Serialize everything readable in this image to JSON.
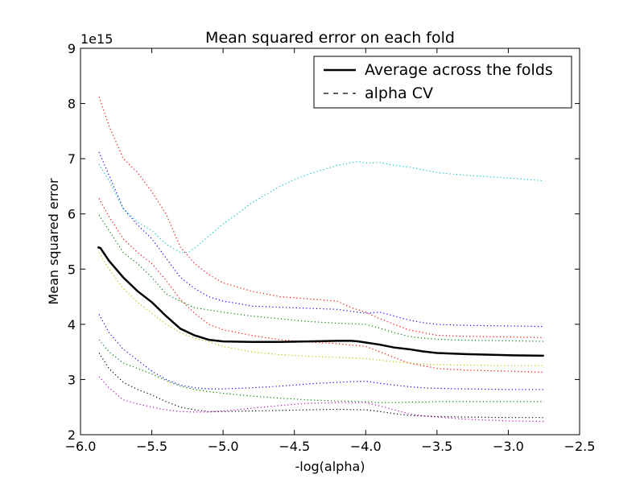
{
  "chart_data": {
    "type": "line",
    "title": "Mean squared error on each fold",
    "xlabel": "-log(alpha)",
    "ylabel": "Mean squared error",
    "y_multiplier_label": "1e15",
    "xlim": [
      -6.0,
      -2.5
    ],
    "ylim": [
      2,
      9
    ],
    "x_ticks": [
      "−6.0",
      "−5.5",
      "−5.0",
      "−4.5",
      "−4.0",
      "−3.5",
      "−3.0",
      "−2.5"
    ],
    "x_tick_values": [
      -6.0,
      -5.5,
      -5.0,
      -4.5,
      -4.0,
      -3.5,
      -3.0,
      -2.5
    ],
    "y_ticks": [
      "2",
      "3",
      "4",
      "5",
      "6",
      "7",
      "8",
      "9"
    ],
    "y_tick_values": [
      2,
      3,
      4,
      5,
      6,
      7,
      8,
      9
    ],
    "grid": false,
    "legend_position": "top-right",
    "legend": [
      {
        "label": "Average across the folds",
        "style": "solid-thick",
        "color": "#000000"
      },
      {
        "label": "alpha CV",
        "style": "dashed",
        "color": "#000000"
      }
    ],
    "series": [
      {
        "style": "dotted",
        "color": "#ff0000",
        "x": [
          -5.87,
          -5.8,
          -5.7,
          -5.6,
          -5.5,
          -5.4,
          -5.3,
          -5.2,
          -5.1,
          -5.0,
          -4.8,
          -4.6,
          -4.4,
          -4.2,
          -4.1,
          -4.0,
          -3.9,
          -3.8,
          -3.7,
          -3.6,
          -3.5,
          -3.3,
          -3.0,
          -2.75
        ],
        "y": [
          8.12,
          7.6,
          7.0,
          6.75,
          6.4,
          6.0,
          5.4,
          5.1,
          4.9,
          4.75,
          4.6,
          4.5,
          4.46,
          4.42,
          4.3,
          4.22,
          4.1,
          4.0,
          3.9,
          3.85,
          3.8,
          3.78,
          3.77,
          3.76
        ]
      },
      {
        "style": "dotted",
        "color": "#0000ff",
        "x": [
          -5.87,
          -5.8,
          -5.7,
          -5.6,
          -5.5,
          -5.4,
          -5.3,
          -5.2,
          -5.1,
          -5.0,
          -4.9,
          -4.8,
          -4.6,
          -4.4,
          -4.2,
          -4.0,
          -3.9,
          -3.8,
          -3.7,
          -3.6,
          -3.5,
          -3.3,
          -3.0,
          -2.75
        ],
        "y": [
          7.12,
          6.7,
          6.1,
          5.8,
          5.55,
          5.2,
          4.85,
          4.65,
          4.5,
          4.42,
          4.38,
          4.33,
          4.31,
          4.29,
          4.27,
          4.2,
          4.22,
          4.15,
          4.08,
          4.03,
          4.0,
          3.98,
          3.97,
          3.96
        ]
      },
      {
        "style": "dotted",
        "color": "#00bfbf",
        "x": [
          -5.87,
          -5.8,
          -5.7,
          -5.6,
          -5.5,
          -5.4,
          -5.3,
          -5.25,
          -5.2,
          -5.1,
          -5.0,
          -4.9,
          -4.8,
          -4.7,
          -4.6,
          -4.5,
          -4.4,
          -4.3,
          -4.2,
          -4.1,
          -4.05,
          -4.0,
          -3.9,
          -3.8,
          -3.7,
          -3.6,
          -3.5,
          -3.3,
          -3.0,
          -2.75
        ],
        "y": [
          6.9,
          6.6,
          6.1,
          5.85,
          5.7,
          5.45,
          5.3,
          5.3,
          5.38,
          5.6,
          5.82,
          6.0,
          6.2,
          6.35,
          6.5,
          6.62,
          6.72,
          6.8,
          6.88,
          6.93,
          6.95,
          6.92,
          6.93,
          6.88,
          6.85,
          6.8,
          6.75,
          6.7,
          6.65,
          6.6
        ]
      },
      {
        "style": "dotted",
        "color": "#ff0000",
        "x": [
          -5.87,
          -5.8,
          -5.7,
          -5.6,
          -5.5,
          -5.4,
          -5.3,
          -5.2,
          -5.1,
          -5.0,
          -4.8,
          -4.6,
          -4.4,
          -4.2,
          -4.0,
          -3.9,
          -3.8,
          -3.7,
          -3.6,
          -3.5,
          -3.3,
          -3.0,
          -2.75
        ],
        "y": [
          6.28,
          5.95,
          5.55,
          5.3,
          5.1,
          4.8,
          4.45,
          4.2,
          4.0,
          3.9,
          3.8,
          3.72,
          3.68,
          3.65,
          3.6,
          3.5,
          3.4,
          3.3,
          3.25,
          3.2,
          3.17,
          3.15,
          3.13
        ]
      },
      {
        "style": "dotted",
        "color": "#008000",
        "x": [
          -5.87,
          -5.8,
          -5.7,
          -5.6,
          -5.5,
          -5.4,
          -5.3,
          -5.2,
          -5.0,
          -4.8,
          -4.6,
          -4.4,
          -4.2,
          -4.0,
          -3.9,
          -3.8,
          -3.7,
          -3.6,
          -3.5,
          -3.3,
          -3.0,
          -2.75
        ],
        "y": [
          5.98,
          5.7,
          5.3,
          5.1,
          4.85,
          4.55,
          4.42,
          4.3,
          4.22,
          4.15,
          4.1,
          4.05,
          4.02,
          4.0,
          3.93,
          3.85,
          3.78,
          3.75,
          3.73,
          3.71,
          3.7,
          3.69
        ]
      },
      {
        "style": "dotted",
        "color": "#bfbf00",
        "x": [
          -5.87,
          -5.8,
          -5.7,
          -5.6,
          -5.5,
          -5.4,
          -5.3,
          -5.2,
          -5.1,
          -5.0,
          -4.8,
          -4.6,
          -4.4,
          -4.2,
          -4.0,
          -3.9,
          -3.8,
          -3.7,
          -3.6,
          -3.5,
          -3.3,
          -3.0,
          -2.75
        ],
        "y": [
          5.3,
          5.0,
          4.65,
          4.4,
          4.2,
          4.0,
          3.85,
          3.75,
          3.68,
          3.6,
          3.5,
          3.45,
          3.42,
          3.4,
          3.38,
          3.35,
          3.32,
          3.3,
          3.28,
          3.27,
          3.26,
          3.25,
          3.25
        ]
      },
      {
        "style": "dotted",
        "color": "#0000ff",
        "x": [
          -5.87,
          -5.8,
          -5.7,
          -5.6,
          -5.5,
          -5.4,
          -5.3,
          -5.2,
          -5.1,
          -5.0,
          -4.8,
          -4.6,
          -4.4,
          -4.2,
          -4.0,
          -3.9,
          -3.8,
          -3.7,
          -3.6,
          -3.5,
          -3.3,
          -3.0,
          -2.75
        ],
        "y": [
          4.18,
          3.85,
          3.55,
          3.35,
          3.15,
          3.0,
          2.9,
          2.85,
          2.83,
          2.83,
          2.85,
          2.88,
          2.92,
          2.95,
          2.97,
          2.93,
          2.9,
          2.87,
          2.85,
          2.84,
          2.83,
          2.82,
          2.82
        ]
      },
      {
        "style": "dotted",
        "color": "#008000",
        "x": [
          -5.87,
          -5.8,
          -5.7,
          -5.6,
          -5.5,
          -5.4,
          -5.3,
          -5.2,
          -5.1,
          -5.0,
          -4.8,
          -4.6,
          -4.4,
          -4.2,
          -4.0,
          -3.9,
          -3.8,
          -3.7,
          -3.6,
          -3.5,
          -3.3,
          -3.0,
          -2.75
        ],
        "y": [
          3.72,
          3.5,
          3.3,
          3.2,
          3.1,
          2.98,
          2.88,
          2.82,
          2.78,
          2.75,
          2.7,
          2.66,
          2.63,
          2.61,
          2.6,
          2.58,
          2.58,
          2.59,
          2.59,
          2.6,
          2.6,
          2.6,
          2.6
        ]
      },
      {
        "style": "dotted",
        "color": "#000000",
        "x": [
          -5.87,
          -5.8,
          -5.7,
          -5.6,
          -5.5,
          -5.4,
          -5.3,
          -5.2,
          -5.1,
          -5.0,
          -4.8,
          -4.6,
          -4.4,
          -4.2,
          -4.0,
          -3.9,
          -3.8,
          -3.7,
          -3.6,
          -3.5,
          -3.3,
          -3.0,
          -2.75
        ],
        "y": [
          3.48,
          3.2,
          2.95,
          2.82,
          2.72,
          2.6,
          2.5,
          2.45,
          2.42,
          2.42,
          2.43,
          2.44,
          2.45,
          2.46,
          2.45,
          2.42,
          2.38,
          2.35,
          2.34,
          2.33,
          2.32,
          2.31,
          2.31
        ]
      },
      {
        "style": "dotted",
        "color": "#bf00bf",
        "x": [
          -5.87,
          -5.8,
          -5.7,
          -5.6,
          -5.5,
          -5.4,
          -5.3,
          -5.2,
          -5.1,
          -5.0,
          -4.8,
          -4.6,
          -4.4,
          -4.2,
          -4.0,
          -3.9,
          -3.8,
          -3.7,
          -3.6,
          -3.5,
          -3.3,
          -3.0,
          -2.75
        ],
        "y": [
          3.05,
          2.85,
          2.63,
          2.56,
          2.5,
          2.45,
          2.42,
          2.41,
          2.41,
          2.43,
          2.48,
          2.53,
          2.57,
          2.58,
          2.58,
          2.52,
          2.45,
          2.38,
          2.34,
          2.32,
          2.28,
          2.25,
          2.24
        ]
      },
      {
        "name": "Average across the folds",
        "style": "solid-thick",
        "color": "#000000",
        "x": [
          -5.88,
          -5.86,
          -5.8,
          -5.7,
          -5.6,
          -5.5,
          -5.4,
          -5.3,
          -5.2,
          -5.1,
          -5.0,
          -4.8,
          -4.6,
          -4.4,
          -4.2,
          -4.1,
          -4.05,
          -4.0,
          -3.9,
          -3.8,
          -3.7,
          -3.6,
          -3.5,
          -3.3,
          -3.0,
          -2.75
        ],
        "y": [
          5.4,
          5.38,
          5.15,
          4.85,
          4.6,
          4.4,
          4.15,
          3.92,
          3.8,
          3.72,
          3.69,
          3.68,
          3.68,
          3.69,
          3.7,
          3.7,
          3.69,
          3.67,
          3.63,
          3.58,
          3.55,
          3.51,
          3.48,
          3.46,
          3.44,
          3.43
        ]
      }
    ]
  }
}
